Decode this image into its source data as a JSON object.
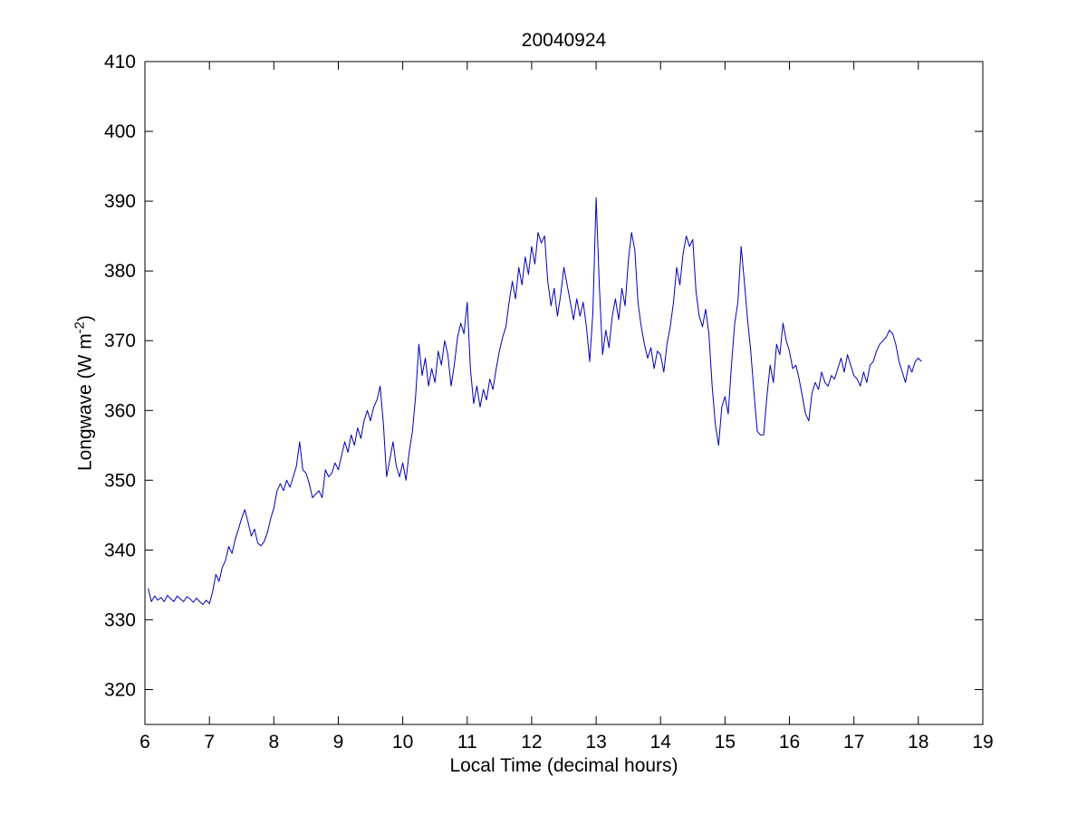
{
  "title": "20040924",
  "axes": {
    "xlabel": "Local Time (decimal hours)",
    "ylabel_main": "Longwave (W m",
    "ylabel_sup": "-2",
    "ylabel_close": ")"
  },
  "chart_data": {
    "type": "line",
    "title": "20040924",
    "xlabel": "Local Time (decimal hours)",
    "ylabel": "Longwave (W m^-2)",
    "xlim": [
      6,
      19
    ],
    "ylim": [
      315,
      410
    ],
    "xticks": [
      6,
      7,
      8,
      9,
      10,
      11,
      12,
      13,
      14,
      15,
      16,
      17,
      18,
      19
    ],
    "yticks": [
      320,
      330,
      340,
      350,
      360,
      370,
      380,
      390,
      400,
      410
    ],
    "grid": false,
    "legend": null,
    "line_color": "#0000bb",
    "x_start": 6.05,
    "x_step": 0.05,
    "y": [
      334.5,
      332.6,
      333.4,
      332.8,
      333.2,
      332.6,
      333.5,
      333.0,
      332.6,
      333.4,
      333.0,
      332.6,
      333.3,
      333.0,
      332.5,
      333.1,
      332.6,
      332.2,
      332.8,
      332.3,
      334.0,
      336.5,
      335.5,
      337.5,
      338.5,
      340.5,
      339.5,
      341.5,
      343.0,
      344.5,
      345.8,
      344.0,
      342.0,
      343.0,
      341.0,
      340.6,
      341.2,
      342.5,
      344.5,
      346.0,
      348.5,
      349.5,
      348.5,
      350.0,
      349.0,
      350.5,
      352.0,
      355.5,
      351.5,
      351.0,
      349.5,
      347.5,
      348.0,
      348.5,
      347.5,
      351.5,
      350.5,
      351.0,
      352.5,
      351.5,
      353.5,
      355.5,
      354.0,
      356.5,
      355.0,
      357.5,
      356.0,
      358.5,
      360.0,
      358.5,
      360.5,
      361.5,
      363.5,
      358.0,
      350.5,
      353.0,
      355.5,
      352.0,
      350.5,
      352.5,
      350.0,
      354.0,
      357.0,
      362.0,
      369.5,
      365.0,
      367.5,
      363.5,
      366.0,
      364.0,
      368.5,
      366.5,
      370.0,
      368.0,
      363.5,
      366.5,
      370.5,
      372.5,
      371.0,
      375.5,
      366.0,
      361.0,
      363.5,
      360.5,
      363.0,
      361.5,
      364.5,
      363.0,
      366.0,
      368.5,
      370.5,
      372.0,
      375.5,
      378.5,
      376.0,
      380.5,
      378.0,
      382.0,
      379.5,
      383.5,
      381.0,
      385.5,
      384.0,
      385.0,
      378.5,
      375.0,
      377.5,
      373.5,
      376.5,
      380.5,
      378.0,
      375.5,
      373.0,
      376.0,
      373.5,
      375.5,
      372.0,
      367.0,
      374.0,
      390.5,
      378.0,
      368.0,
      371.5,
      369.0,
      373.5,
      376.0,
      373.0,
      377.5,
      375.0,
      381.5,
      385.5,
      383.0,
      375.5,
      372.0,
      369.5,
      367.5,
      369.0,
      366.0,
      368.5,
      368.0,
      365.5,
      369.5,
      372.0,
      375.5,
      380.5,
      378.0,
      382.5,
      385.0,
      383.5,
      384.5,
      377.0,
      373.5,
      372.0,
      374.5,
      371.0,
      363.5,
      358.0,
      355.0,
      360.5,
      362.0,
      359.5,
      366.5,
      372.5,
      375.5,
      383.5,
      378.5,
      373.0,
      368.5,
      362.5,
      357.0,
      356.5,
      356.5,
      362.0,
      366.5,
      364.0,
      369.5,
      368.0,
      372.5,
      370.0,
      368.5,
      366.0,
      366.5,
      364.5,
      362.0,
      359.5,
      358.5,
      362.5,
      364.0,
      363.0,
      365.5,
      364.0,
      363.5,
      365.0,
      364.5,
      366.0,
      367.5,
      365.5,
      368.0,
      366.5,
      365.0,
      364.5,
      363.5,
      365.5,
      364.0,
      366.5,
      367.0,
      368.5,
      369.5,
      370.0,
      370.5,
      371.5,
      371.0,
      369.5,
      367.0,
      365.5,
      364.0,
      366.5,
      365.5,
      367.0,
      367.5,
      367.0
    ]
  }
}
